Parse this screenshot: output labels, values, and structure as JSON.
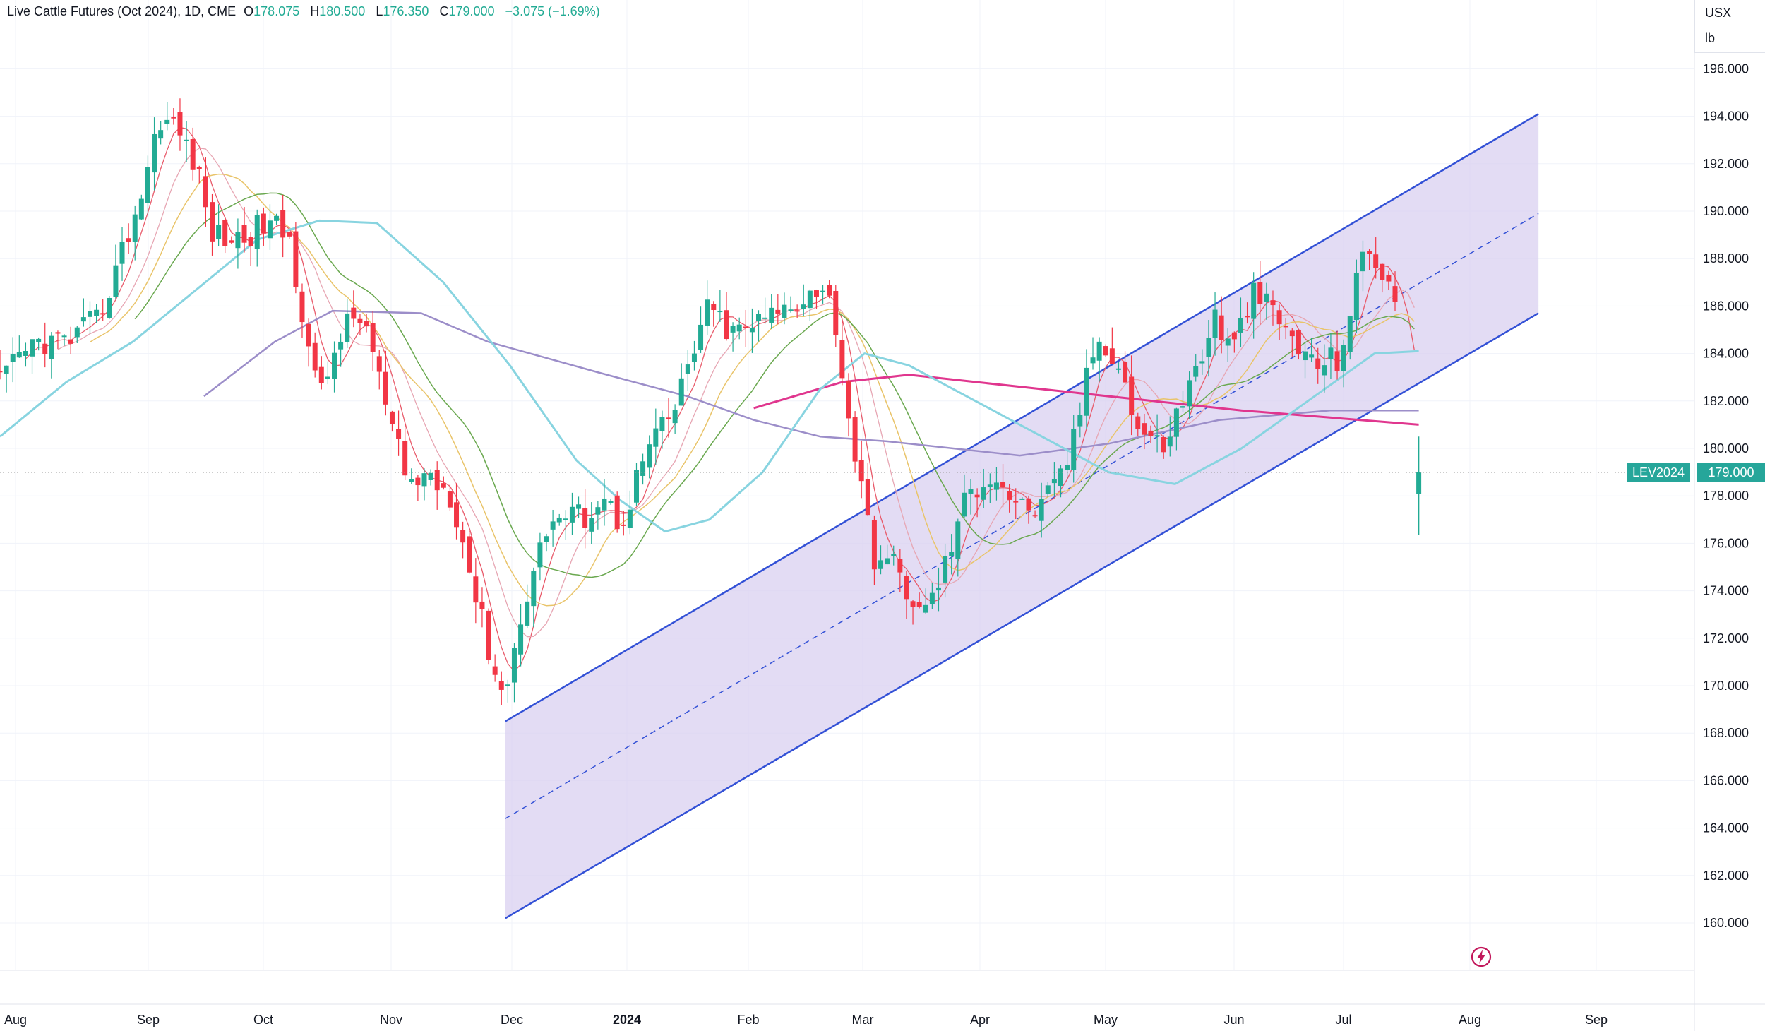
{
  "header": {
    "title": "Live Cattle Futures (Oct 2024), 1D, CME",
    "open_key": "O",
    "open": "178.075",
    "high_key": "H",
    "high": "180.500",
    "low_key": "L",
    "low": "176.350",
    "close_key": "C",
    "close": "179.000",
    "change": "−3.075 (−1.69%)"
  },
  "unit": {
    "currency": "USX",
    "measure": "lb"
  },
  "last_price": {
    "ticker": "LEV2024",
    "value": "179.000",
    "color": "#26a69a"
  },
  "colors": {
    "up": "#22ab94",
    "down": "#f23645",
    "channel_line": "#3351d6",
    "channel_fill": "#d7cdf0",
    "ma200": "#9c8ec9",
    "ma_magenta": "#e0368e"
  },
  "chart_data": {
    "type": "candlestick",
    "title": "Live Cattle Futures (Oct 2024), 1D, CME",
    "y_axis": {
      "ticks": [
        196,
        194,
        192,
        190,
        188,
        186,
        184,
        182,
        180,
        178,
        176,
        174,
        172,
        170,
        168,
        166,
        164,
        162,
        160
      ],
      "range": [
        158.5,
        198.5
      ]
    },
    "x_axis": {
      "ticks": [
        "Aug",
        "Sep",
        "Oct",
        "Nov",
        "Dec",
        "2024",
        "Feb",
        "Mar",
        "Apr",
        "May",
        "Jun",
        "Jul",
        "Aug",
        "Sep"
      ],
      "range_days": [
        0,
        400
      ]
    },
    "price_path": [
      [
        0,
        182.8
      ],
      [
        8,
        184.5
      ],
      [
        15,
        184.5
      ],
      [
        22,
        185.4
      ],
      [
        27,
        188
      ],
      [
        32,
        190.8
      ],
      [
        36,
        194
      ],
      [
        40,
        193.5
      ],
      [
        44,
        192
      ],
      [
        48,
        189
      ],
      [
        54,
        188.8
      ],
      [
        60,
        189.5
      ],
      [
        65,
        189
      ],
      [
        72,
        182
      ],
      [
        77,
        185
      ],
      [
        82,
        185.6
      ],
      [
        88,
        181
      ],
      [
        92,
        178.5
      ],
      [
        97,
        178.9
      ],
      [
        102,
        178
      ],
      [
        107,
        174
      ],
      [
        111,
        171
      ],
      [
        114,
        169.5
      ],
      [
        118,
        173.5
      ],
      [
        124,
        177
      ],
      [
        132,
        177.2
      ],
      [
        136,
        178
      ],
      [
        140,
        176.8
      ],
      [
        146,
        180
      ],
      [
        152,
        181.5
      ],
      [
        156,
        184
      ],
      [
        160,
        186
      ],
      [
        165,
        184.8
      ],
      [
        172,
        185.4
      ],
      [
        178,
        186
      ],
      [
        184,
        186.8
      ],
      [
        187,
        186.2
      ],
      [
        189,
        185
      ],
      [
        190,
        183
      ],
      [
        194,
        178.5
      ],
      [
        197,
        175.5
      ],
      [
        202,
        175
      ],
      [
        208,
        172.8
      ],
      [
        213,
        175
      ],
      [
        218,
        178
      ],
      [
        224,
        179
      ],
      [
        230,
        177.5
      ],
      [
        235,
        177.5
      ],
      [
        240,
        179
      ],
      [
        244,
        182
      ],
      [
        247,
        184.5
      ],
      [
        252,
        184
      ],
      [
        256,
        181
      ],
      [
        262,
        180
      ],
      [
        268,
        182.5
      ],
      [
        274,
        185.5
      ],
      [
        278,
        184
      ],
      [
        282,
        186.5
      ],
      [
        286,
        186
      ],
      [
        292,
        184.5
      ],
      [
        296,
        183.5
      ],
      [
        302,
        183.8
      ],
      [
        308,
        188.5
      ],
      [
        312,
        187.5
      ],
      [
        315,
        186
      ],
      [
        318,
        182.5
      ],
      [
        319,
        180
      ],
      [
        320,
        178.9
      ]
    ],
    "series": [
      {
        "name": "Channel upper",
        "points": [
          [
            114,
            168.5
          ],
          [
            347,
            194.1
          ]
        ]
      },
      {
        "name": "Channel median (dashed)",
        "points": [
          [
            114,
            164.4
          ],
          [
            347,
            189.9
          ]
        ]
      },
      {
        "name": "Channel lower",
        "points": [
          [
            114,
            160.2
          ],
          [
            347,
            185.7
          ]
        ]
      },
      {
        "name": "MA long (purple)",
        "points": [
          [
            46,
            182.2
          ],
          [
            62,
            184.5
          ],
          [
            75,
            185.8
          ],
          [
            95,
            185.7
          ],
          [
            110,
            184.5
          ],
          [
            135,
            183.2
          ],
          [
            155,
            182.2
          ],
          [
            170,
            181.2
          ],
          [
            185,
            180.5
          ],
          [
            200,
            180.3
          ],
          [
            215,
            180
          ],
          [
            230,
            179.7
          ],
          [
            250,
            180.2
          ],
          [
            275,
            181.2
          ],
          [
            300,
            181.6
          ],
          [
            320,
            181.6
          ]
        ]
      },
      {
        "name": "MA magenta",
        "points": [
          [
            170,
            181.7
          ],
          [
            190,
            182.8
          ],
          [
            205,
            183.1
          ],
          [
            220,
            182.8
          ],
          [
            240,
            182.4
          ],
          [
            260,
            182
          ],
          [
            280,
            181.6
          ],
          [
            300,
            181.3
          ],
          [
            320,
            181
          ]
        ]
      },
      {
        "name": "MA cyan",
        "points": [
          [
            0,
            180.5
          ],
          [
            15,
            182.8
          ],
          [
            30,
            184.5
          ],
          [
            45,
            186.8
          ],
          [
            58,
            188.8
          ],
          [
            72,
            189.6
          ],
          [
            85,
            189.5
          ],
          [
            100,
            187
          ],
          [
            115,
            183.5
          ],
          [
            130,
            179.5
          ],
          [
            140,
            177.8
          ],
          [
            150,
            176.5
          ],
          [
            160,
            177
          ],
          [
            172,
            179
          ],
          [
            185,
            182.5
          ],
          [
            195,
            184
          ],
          [
            205,
            183.5
          ],
          [
            220,
            182
          ],
          [
            235,
            180.5
          ],
          [
            250,
            179
          ],
          [
            265,
            178.5
          ],
          [
            280,
            180
          ],
          [
            295,
            182
          ],
          [
            310,
            184
          ],
          [
            320,
            184.1
          ]
        ]
      }
    ],
    "last_value": 179.0
  }
}
